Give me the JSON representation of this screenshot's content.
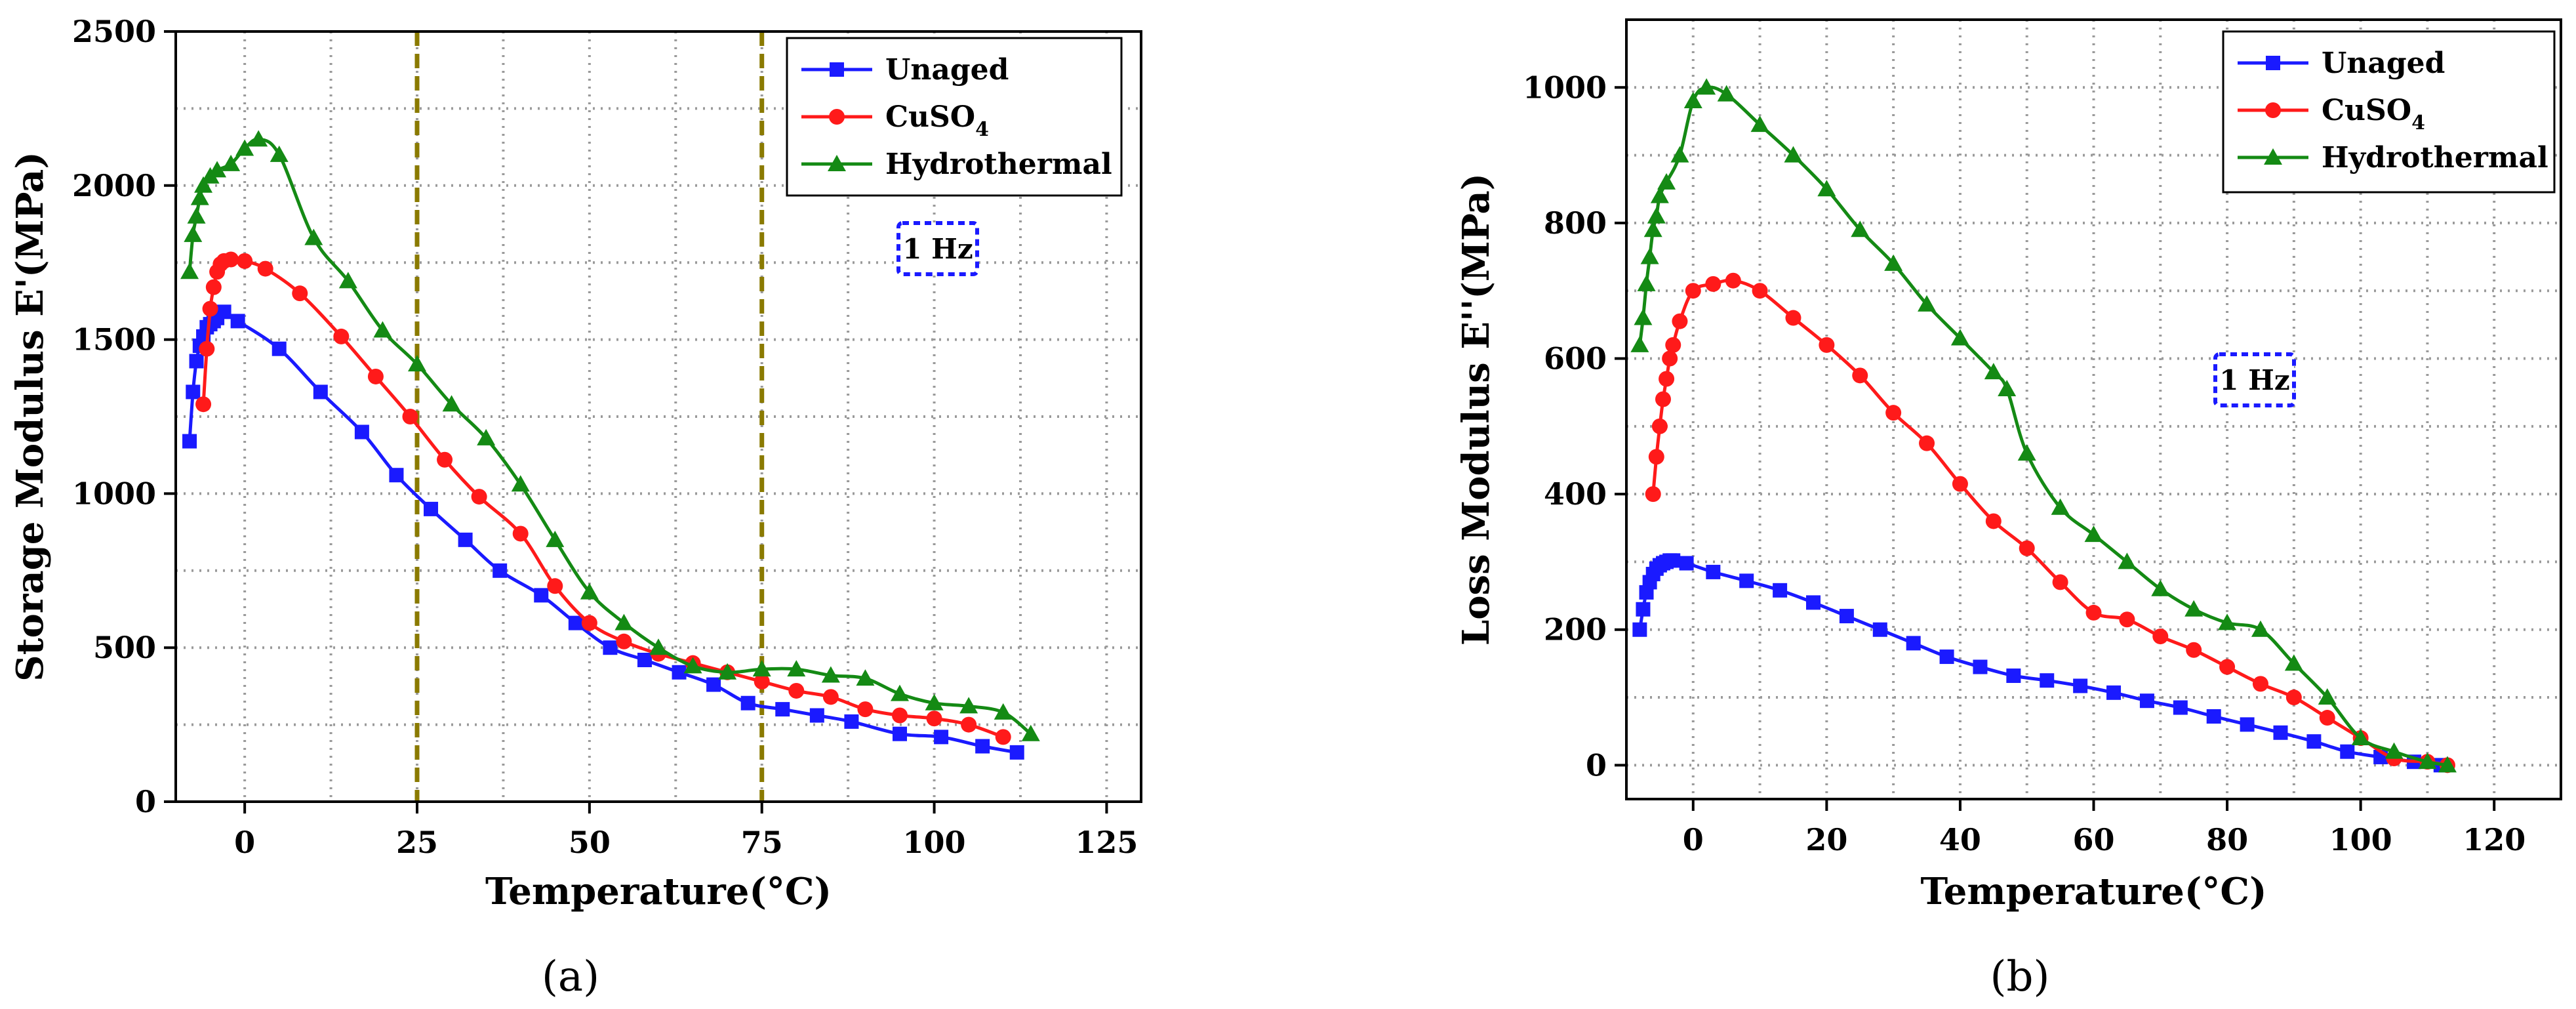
{
  "chart_data": [
    {
      "type": "line",
      "panel_label": "(a)",
      "title": "",
      "xlabel": "Temperature(°C)",
      "ylabel": "Storage Modulus E'(MPa)",
      "xlim": [
        -10,
        130
      ],
      "ylim": [
        0,
        2500
      ],
      "xticks": [
        0,
        25,
        50,
        75,
        100,
        125
      ],
      "yticks": [
        0,
        500,
        1000,
        1500,
        2000,
        2500
      ],
      "grid": "dotted",
      "legend_position": "top-right",
      "annotation": "1 Hz",
      "reference_lines_x": [
        25,
        75
      ],
      "series": [
        {
          "name": "Unaged",
          "subscript": "",
          "color": "#1a1aff",
          "marker": "square",
          "x": [
            -8,
            -7.5,
            -7,
            -6.5,
            -6,
            -5.5,
            -5,
            -4.5,
            -4,
            -3,
            -1,
            5,
            11,
            17,
            22,
            27,
            32,
            37,
            43,
            48,
            53,
            58,
            63,
            68,
            73,
            78,
            83,
            88,
            95,
            101,
            107,
            112
          ],
          "y": [
            1170,
            1330,
            1430,
            1480,
            1510,
            1540,
            1550,
            1560,
            1570,
            1590,
            1560,
            1470,
            1330,
            1200,
            1060,
            950,
            850,
            750,
            670,
            580,
            500,
            460,
            420,
            380,
            320,
            300,
            280,
            260,
            220,
            210,
            180,
            160
          ]
        },
        {
          "name": "CuSO",
          "subscript": "4",
          "color": "#ff1a1a",
          "marker": "circle",
          "x": [
            -6,
            -5.5,
            -5,
            -4.5,
            -4,
            -3.5,
            -3,
            -2,
            0,
            3,
            8,
            14,
            19,
            24,
            29,
            34,
            40,
            45,
            50,
            55,
            60,
            65,
            70,
            75,
            80,
            85,
            90,
            95,
            100,
            105,
            110
          ],
          "y": [
            1290,
            1470,
            1600,
            1670,
            1720,
            1745,
            1755,
            1760,
            1755,
            1730,
            1650,
            1510,
            1380,
            1250,
            1110,
            990,
            870,
            700,
            580,
            520,
            480,
            450,
            420,
            390,
            360,
            340,
            300,
            280,
            270,
            250,
            210
          ]
        },
        {
          "name": "Hydrothermal",
          "subscript": "",
          "color": "#148a14",
          "marker": "triangle",
          "x": [
            -8,
            -7.5,
            -7,
            -6.5,
            -6,
            -5,
            -4,
            -2,
            0,
            2,
            5,
            10,
            15,
            20,
            25,
            30,
            35,
            40,
            45,
            50,
            55,
            60,
            65,
            70,
            75,
            80,
            85,
            90,
            95,
            100,
            105,
            110,
            114
          ],
          "y": [
            1720,
            1840,
            1900,
            1960,
            2000,
            2030,
            2050,
            2070,
            2120,
            2150,
            2100,
            1830,
            1690,
            1530,
            1420,
            1290,
            1180,
            1030,
            850,
            680,
            580,
            500,
            440,
            420,
            430,
            430,
            410,
            400,
            350,
            320,
            310,
            290,
            220
          ]
        }
      ]
    },
    {
      "type": "line",
      "panel_label": "(b)",
      "title": "",
      "xlabel": "Temperature(°C)",
      "ylabel": "Loss Modulus E''(MPa)",
      "xlim": [
        -10,
        130
      ],
      "ylim": [
        -50,
        1100
      ],
      "xticks": [
        0,
        20,
        40,
        60,
        80,
        100,
        120
      ],
      "yticks": [
        0,
        200,
        400,
        600,
        800,
        1000
      ],
      "grid": "dotted",
      "legend_position": "top-right",
      "annotation": "1 Hz",
      "series": [
        {
          "name": "Unaged",
          "subscript": "",
          "color": "#1a1aff",
          "marker": "square",
          "x": [
            -8,
            -7.5,
            -7,
            -6.5,
            -6,
            -5.5,
            -5,
            -4.5,
            -4,
            -3.5,
            -3,
            -1,
            3,
            8,
            13,
            18,
            23,
            28,
            33,
            38,
            43,
            48,
            53,
            58,
            63,
            68,
            73,
            78,
            83,
            88,
            93,
            98,
            103,
            108,
            112
          ],
          "y": [
            200,
            230,
            255,
            270,
            282,
            290,
            295,
            298,
            300,
            302,
            302,
            298,
            285,
            272,
            258,
            240,
            220,
            200,
            180,
            160,
            145,
            132,
            125,
            117,
            107,
            95,
            85,
            72,
            60,
            48,
            35,
            20,
            12,
            5,
            0
          ]
        },
        {
          "name": "CuSO",
          "subscript": "4",
          "color": "#ff1a1a",
          "marker": "circle",
          "x": [
            -6,
            -5.5,
            -5,
            -4.5,
            -4,
            -3.5,
            -3,
            -2,
            0,
            3,
            6,
            10,
            15,
            20,
            25,
            30,
            35,
            40,
            45,
            50,
            55,
            60,
            65,
            70,
            75,
            80,
            85,
            90,
            95,
            100,
            105,
            110,
            113
          ],
          "y": [
            400,
            455,
            500,
            540,
            570,
            600,
            620,
            655,
            700,
            710,
            715,
            700,
            660,
            620,
            575,
            520,
            475,
            415,
            360,
            320,
            270,
            225,
            215,
            190,
            170,
            145,
            120,
            100,
            70,
            40,
            10,
            5,
            0
          ]
        },
        {
          "name": "Hydrothermal",
          "subscript": "",
          "color": "#148a14",
          "marker": "triangle",
          "x": [
            -8,
            -7.5,
            -7,
            -6.5,
            -6,
            -5.5,
            -5,
            -4,
            -2,
            0,
            2,
            5,
            10,
            15,
            20,
            25,
            30,
            35,
            40,
            45,
            47,
            50,
            55,
            60,
            65,
            70,
            75,
            80,
            85,
            90,
            95,
            100,
            105,
            110,
            113
          ],
          "y": [
            620,
            660,
            710,
            750,
            790,
            810,
            840,
            860,
            900,
            980,
            1000,
            990,
            945,
            900,
            850,
            790,
            740,
            680,
            630,
            580,
            555,
            460,
            380,
            340,
            300,
            260,
            230,
            210,
            200,
            150,
            100,
            40,
            20,
            5,
            0
          ]
        }
      ]
    }
  ]
}
